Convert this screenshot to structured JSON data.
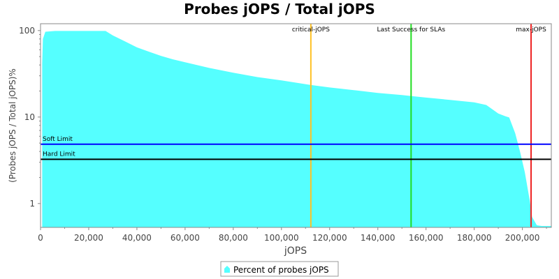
{
  "chart_data": {
    "type": "area",
    "title": "Probes jOPS / Total jOPS",
    "xlabel": "jOPS",
    "ylabel": "(Probes jOPS / Total jOPS)%",
    "yscale": "log",
    "xlim": [
      0,
      212000
    ],
    "ylim": [
      0.53,
      120
    ],
    "x_ticks": [
      {
        "value": 0,
        "label": "0"
      },
      {
        "value": 20000,
        "label": "20,000"
      },
      {
        "value": 40000,
        "label": "40,000"
      },
      {
        "value": 60000,
        "label": "60,000"
      },
      {
        "value": 80000,
        "label": "80,000"
      },
      {
        "value": 100000,
        "label": "100,000"
      },
      {
        "value": 120000,
        "label": "120,000"
      },
      {
        "value": 140000,
        "label": "140,000"
      },
      {
        "value": 160000,
        "label": "160,000"
      },
      {
        "value": 180000,
        "label": "180,000"
      },
      {
        "value": 200000,
        "label": "200,000"
      }
    ],
    "y_ticks": [
      {
        "value": 1,
        "label": "1"
      },
      {
        "value": 10,
        "label": "10"
      },
      {
        "value": 100,
        "label": "100"
      }
    ],
    "grid": false,
    "legend_position": "bottom",
    "series": [
      {
        "name": "Percent of probes jOPS",
        "color": "#55ffff",
        "x": [
          700,
          1000,
          2000,
          6000,
          15000,
          27000,
          30000,
          35000,
          40000,
          45000,
          50000,
          55000,
          60000,
          70000,
          80000,
          90000,
          100000,
          112000,
          120000,
          130000,
          140000,
          150000,
          154000,
          160000,
          170000,
          180000,
          185000,
          187000,
          190000,
          193000,
          194500,
          197000,
          199000,
          201000,
          203000,
          204000,
          206000,
          208000,
          212000
        ],
        "values": [
          42,
          80,
          97,
          99,
          99,
          99,
          88,
          75,
          64,
          57,
          51,
          46.5,
          43,
          37,
          32.5,
          29,
          26.5,
          23.5,
          22,
          20.5,
          19,
          18,
          17.5,
          16.8,
          15.8,
          14.8,
          13.8,
          12.6,
          11,
          10.2,
          9.9,
          6.5,
          4.0,
          2.3,
          1.1,
          0.7,
          0.56,
          0.55,
          0.55
        ]
      }
    ],
    "reference_lines": [
      {
        "orientation": "vertical",
        "value": 112200,
        "label": "critical-jOPS",
        "color": "#ffc125"
      },
      {
        "orientation": "vertical",
        "value": 153800,
        "label": "Last Success for SLAs",
        "color": "#22dd22"
      },
      {
        "orientation": "vertical",
        "value": 203600,
        "label": "max-jOPS",
        "color": "#ee2222"
      },
      {
        "orientation": "horizontal",
        "value": 4.85,
        "label": "Soft Limit",
        "color": "#0000ff"
      },
      {
        "orientation": "horizontal",
        "value": 3.25,
        "label": "Hard Limit",
        "color": "#000000"
      }
    ]
  }
}
